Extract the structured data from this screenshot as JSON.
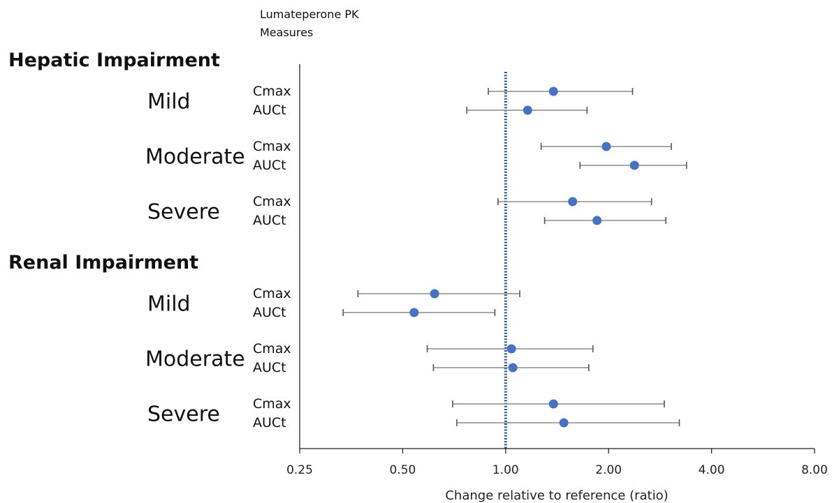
{
  "chart_data": {
    "type": "scatter",
    "subtype": "forest-plot",
    "legend_title": [
      "Lumateperone PK",
      "Measures"
    ],
    "xlabel": "Change relative to reference (ratio)",
    "xscale": "log2",
    "xlim": [
      0.25,
      8
    ],
    "xticks": [
      0.25,
      0.5,
      1,
      2,
      4,
      8
    ],
    "xtick_labels": [
      "0.25",
      "0.50",
      "1.00",
      "2.00",
      "4.00",
      "8.00"
    ],
    "reference_line": 1.0,
    "point_color": "#4472C4",
    "reference_color": "#2F5597",
    "groups": [
      {
        "name": "Hepatic Impairment",
        "subgroups": [
          {
            "name": "Mild",
            "measures": [
              {
                "name": "Cmax",
                "estimate": 1.38,
                "lower": 0.89,
                "upper": 2.35
              },
              {
                "name": "AUCt",
                "estimate": 1.16,
                "lower": 0.77,
                "upper": 1.73
              }
            ]
          },
          {
            "name": "Moderate",
            "measures": [
              {
                "name": "Cmax",
                "estimate": 1.97,
                "lower": 1.27,
                "upper": 3.05
              },
              {
                "name": "AUCt",
                "estimate": 2.38,
                "lower": 1.65,
                "upper": 3.38
              }
            ]
          },
          {
            "name": "Severe",
            "measures": [
              {
                "name": "Cmax",
                "estimate": 1.57,
                "lower": 0.95,
                "upper": 2.67
              },
              {
                "name": "AUCt",
                "estimate": 1.85,
                "lower": 1.3,
                "upper": 2.94
              }
            ]
          }
        ]
      },
      {
        "name": "Renal Impairment",
        "subgroups": [
          {
            "name": "Mild",
            "measures": [
              {
                "name": "Cmax",
                "estimate": 0.62,
                "lower": 0.37,
                "upper": 1.1
              },
              {
                "name": "AUCt",
                "estimate": 0.54,
                "lower": 0.335,
                "upper": 0.93
              }
            ]
          },
          {
            "name": "Moderate",
            "measures": [
              {
                "name": "Cmax",
                "estimate": 1.04,
                "lower": 0.59,
                "upper": 1.8
              },
              {
                "name": "AUCt",
                "estimate": 1.05,
                "lower": 0.615,
                "upper": 1.75
              }
            ]
          },
          {
            "name": "Severe",
            "measures": [
              {
                "name": "Cmax",
                "estimate": 1.38,
                "lower": 0.7,
                "upper": 2.91
              },
              {
                "name": "AUCt",
                "estimate": 1.48,
                "lower": 0.72,
                "upper": 3.22
              }
            ]
          }
        ]
      }
    ]
  }
}
